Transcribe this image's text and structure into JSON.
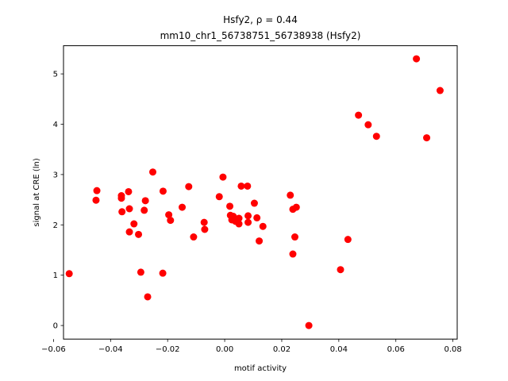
{
  "chart_data": {
    "type": "scatter",
    "title_line1": "Hsfy2, ρ = 0.44",
    "title_line2": "mm10_chr1_56738751_56738938 (Hsfy2)",
    "xlabel": "motif activity",
    "ylabel": "signal at CRE (ln)",
    "xlim": [
      -0.0565,
      0.0815
    ],
    "ylim": [
      -0.27,
      5.56
    ],
    "xticks": [
      -0.06,
      -0.04,
      -0.02,
      0.0,
      0.02,
      0.04,
      0.06,
      0.08
    ],
    "xtick_labels": [
      "−0.06",
      "−0.04",
      "−0.02",
      "0.00",
      "0.02",
      "0.04",
      "0.06",
      "0.08"
    ],
    "yticks": [
      0,
      1,
      2,
      3,
      4,
      5
    ],
    "ytick_labels": [
      "0",
      "1",
      "2",
      "3",
      "4",
      "5"
    ],
    "grid": false,
    "marker_color": "#ff0000",
    "points": [
      {
        "x": -0.0545,
        "y": 1.03
      },
      {
        "x": -0.0448,
        "y": 2.68
      },
      {
        "x": -0.0451,
        "y": 2.49
      },
      {
        "x": -0.0362,
        "y": 2.58
      },
      {
        "x": -0.0362,
        "y": 2.53
      },
      {
        "x": -0.036,
        "y": 2.26
      },
      {
        "x": -0.0337,
        "y": 2.66
      },
      {
        "x": -0.0334,
        "y": 2.32
      },
      {
        "x": -0.0334,
        "y": 1.86
      },
      {
        "x": -0.0318,
        "y": 2.02
      },
      {
        "x": -0.0302,
        "y": 1.81
      },
      {
        "x": -0.0294,
        "y": 1.06
      },
      {
        "x": -0.0282,
        "y": 2.29
      },
      {
        "x": -0.0278,
        "y": 2.48
      },
      {
        "x": -0.027,
        "y": 0.57
      },
      {
        "x": -0.0252,
        "y": 3.05
      },
      {
        "x": -0.0217,
        "y": 1.04
      },
      {
        "x": -0.0216,
        "y": 2.67
      },
      {
        "x": -0.0196,
        "y": 2.2
      },
      {
        "x": -0.019,
        "y": 2.09
      },
      {
        "x": -0.0149,
        "y": 2.35
      },
      {
        "x": -0.0126,
        "y": 2.76
      },
      {
        "x": -0.0109,
        "y": 1.76
      },
      {
        "x": -0.0072,
        "y": 2.05
      },
      {
        "x": -0.007,
        "y": 1.91
      },
      {
        "x": -0.0019,
        "y": 2.56
      },
      {
        "x": -0.0006,
        "y": 2.95
      },
      {
        "x": 0.0018,
        "y": 2.37
      },
      {
        "x": 0.002,
        "y": 2.19
      },
      {
        "x": 0.0025,
        "y": 2.1
      },
      {
        "x": 0.003,
        "y": 2.17
      },
      {
        "x": 0.0038,
        "y": 2.07
      },
      {
        "x": 0.005,
        "y": 2.13
      },
      {
        "x": 0.005,
        "y": 2.02
      },
      {
        "x": 0.0058,
        "y": 2.77
      },
      {
        "x": 0.008,
        "y": 2.77
      },
      {
        "x": 0.0082,
        "y": 2.18
      },
      {
        "x": 0.0082,
        "y": 2.05
      },
      {
        "x": 0.0104,
        "y": 2.43
      },
      {
        "x": 0.0113,
        "y": 2.14
      },
      {
        "x": 0.0121,
        "y": 1.68
      },
      {
        "x": 0.0134,
        "y": 1.97
      },
      {
        "x": 0.023,
        "y": 2.59
      },
      {
        "x": 0.0239,
        "y": 2.31
      },
      {
        "x": 0.0239,
        "y": 1.42
      },
      {
        "x": 0.0246,
        "y": 1.76
      },
      {
        "x": 0.0251,
        "y": 2.35
      },
      {
        "x": 0.0295,
        "y": 0.0
      },
      {
        "x": 0.0406,
        "y": 1.11
      },
      {
        "x": 0.0432,
        "y": 1.71
      },
      {
        "x": 0.0469,
        "y": 4.18
      },
      {
        "x": 0.0503,
        "y": 3.99
      },
      {
        "x": 0.0532,
        "y": 3.76
      },
      {
        "x": 0.0672,
        "y": 5.3
      },
      {
        "x": 0.0708,
        "y": 3.73
      },
      {
        "x": 0.0755,
        "y": 4.67
      }
    ]
  }
}
